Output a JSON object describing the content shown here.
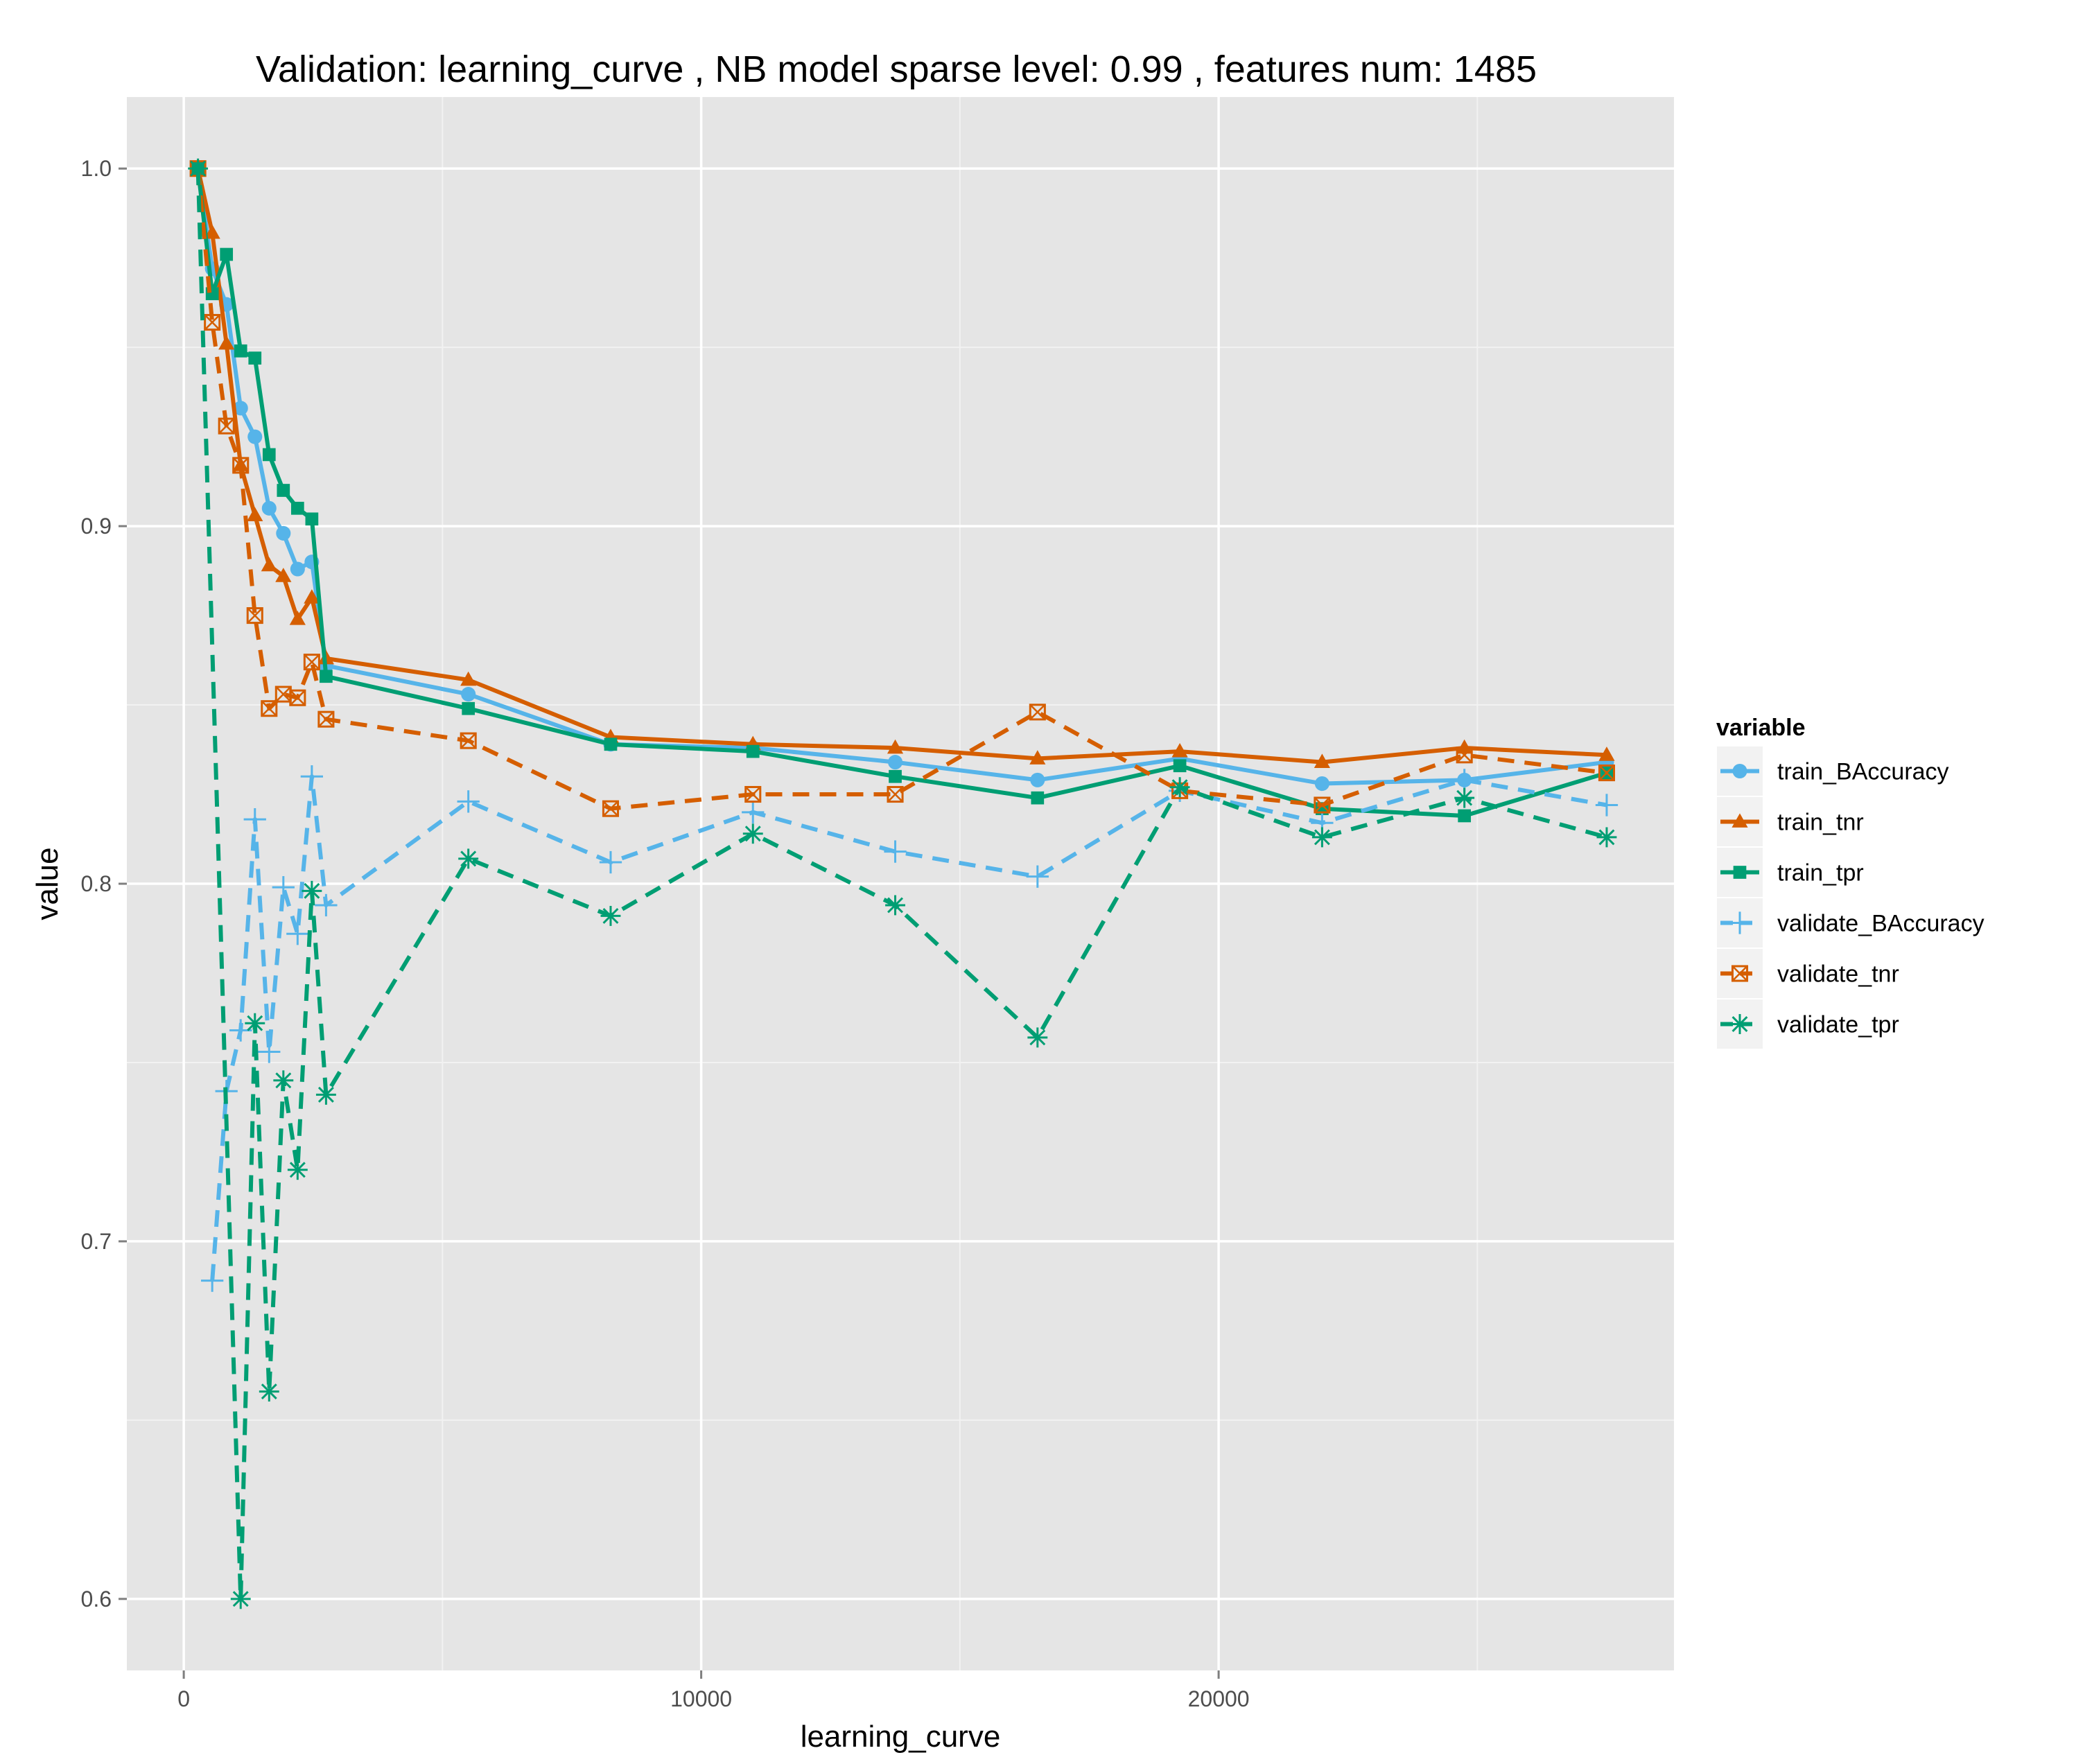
{
  "chart_data": {
    "type": "line",
    "title": "Validation:  learning_curve ,  NB model sparse level: 0.99 , features num: 1485",
    "xlabel": "learning_curve",
    "ylabel": "value",
    "xlim": [
      -1100,
      28800
    ],
    "ylim": [
      0.58,
      1.02
    ],
    "xticks": [
      0,
      10000,
      20000
    ],
    "xtick_labels": [
      "0",
      "10000",
      "20000"
    ],
    "yticks": [
      0.6,
      0.7,
      0.8,
      0.9,
      1.0
    ],
    "ytick_labels": [
      "0.6",
      "0.7",
      "0.8",
      "0.9",
      "1.0"
    ],
    "grid": true,
    "legend": {
      "title": "variable",
      "position": "right"
    },
    "series": [
      {
        "name": "train_BAccuracy",
        "color": "#56B4E9",
        "dash": "solid",
        "marker": "circle",
        "x": [
          275,
          550,
          825,
          1100,
          1375,
          1650,
          1925,
          2200,
          2475,
          2750,
          5500,
          8250,
          11000,
          13750,
          16500,
          19250,
          22000,
          24750,
          27500
        ],
        "y": [
          1.0,
          0.972,
          0.962,
          0.933,
          0.925,
          0.905,
          0.898,
          0.888,
          0.89,
          0.861,
          0.853,
          0.839,
          0.838,
          0.834,
          0.829,
          0.835,
          0.828,
          0.829,
          0.834
        ]
      },
      {
        "name": "train_tnr",
        "color": "#D55E00",
        "dash": "solid",
        "marker": "triangle",
        "x": [
          275,
          550,
          825,
          1100,
          1375,
          1650,
          1925,
          2200,
          2475,
          2750,
          5500,
          8250,
          11000,
          13750,
          16500,
          19250,
          22000,
          24750,
          27500
        ],
        "y": [
          1.0,
          0.982,
          0.951,
          0.917,
          0.903,
          0.889,
          0.886,
          0.874,
          0.88,
          0.863,
          0.857,
          0.841,
          0.839,
          0.838,
          0.835,
          0.837,
          0.834,
          0.838,
          0.836
        ]
      },
      {
        "name": "train_tpr",
        "color": "#009E73",
        "dash": "solid",
        "marker": "square",
        "x": [
          275,
          550,
          825,
          1100,
          1375,
          1650,
          1925,
          2200,
          2475,
          2750,
          5500,
          8250,
          11000,
          13750,
          16500,
          19250,
          22000,
          24750,
          27500
        ],
        "y": [
          1.0,
          0.965,
          0.976,
          0.949,
          0.947,
          0.92,
          0.91,
          0.905,
          0.902,
          0.858,
          0.849,
          0.839,
          0.837,
          0.83,
          0.824,
          0.833,
          0.821,
          0.819,
          0.831
        ]
      },
      {
        "name": "validate_BAccuracy",
        "color": "#56B4E9",
        "dash": "dashed",
        "marker": "plus",
        "x": [
          550,
          825,
          1100,
          1375,
          1650,
          1925,
          2200,
          2475,
          2750,
          5500,
          8250,
          11000,
          13750,
          16500,
          19250,
          22000,
          24750,
          27500
        ],
        "y": [
          0.689,
          0.742,
          0.759,
          0.818,
          0.753,
          0.799,
          0.786,
          0.83,
          0.794,
          0.823,
          0.806,
          0.82,
          0.809,
          0.802,
          0.826,
          0.817,
          0.829,
          0.822
        ]
      },
      {
        "name": "validate_tnr",
        "color": "#D55E00",
        "dash": "dashed",
        "marker": "square-x",
        "x": [
          275,
          550,
          825,
          1100,
          1375,
          1650,
          1925,
          2200,
          2475,
          2750,
          5500,
          8250,
          11000,
          13750,
          16500,
          19250,
          22000,
          24750,
          27500
        ],
        "y": [
          1.0,
          0.957,
          0.928,
          0.917,
          0.875,
          0.849,
          0.853,
          0.852,
          0.862,
          0.846,
          0.84,
          0.821,
          0.825,
          0.825,
          0.848,
          0.826,
          0.822,
          0.836,
          0.831
        ]
      },
      {
        "name": "validate_tpr",
        "color": "#009E73",
        "dash": "dashed",
        "marker": "asterisk",
        "x": [
          275,
          1100,
          1375,
          1650,
          1925,
          2200,
          2475,
          2750,
          5500,
          8250,
          11000,
          13750,
          16500,
          19250,
          22000,
          24750,
          27500
        ],
        "y": [
          1.0,
          0.6,
          0.761,
          0.658,
          0.745,
          0.72,
          0.798,
          0.741,
          0.807,
          0.791,
          0.814,
          0.794,
          0.757,
          0.827,
          0.813,
          0.824,
          0.813
        ]
      }
    ]
  }
}
